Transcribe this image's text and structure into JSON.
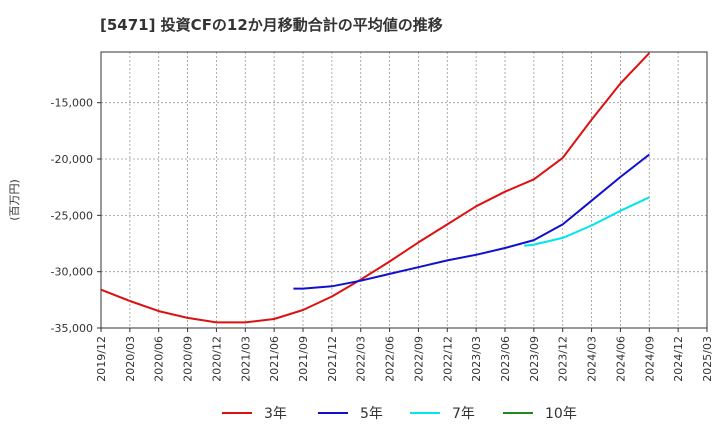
{
  "chart_data": {
    "type": "line",
    "title": "[5471]  投資CFの12か月移動合計の平均値の推移",
    "ylabel": "(百万円)",
    "xlabel": "",
    "ylim": [
      -35000,
      -10500
    ],
    "yticks": [
      -15000,
      -20000,
      -25000,
      -30000,
      -35000
    ],
    "ytick_labels": [
      "-15,000",
      "-20,000",
      "-25,000",
      "-30,000",
      "-35,000"
    ],
    "xticks": [
      "2019/12",
      "2020/03",
      "2020/06",
      "2020/09",
      "2020/12",
      "2021/03",
      "2021/06",
      "2021/09",
      "2021/12",
      "2022/03",
      "2022/06",
      "2022/09",
      "2022/12",
      "2023/03",
      "2023/06",
      "2023/09",
      "2023/12",
      "2024/03",
      "2024/06",
      "2024/09",
      "2024/12",
      "2025/03"
    ],
    "grid": true,
    "legend_position": "bottom",
    "series": [
      {
        "name": "3年",
        "color": "#dd1111",
        "x": [
          "2019/12",
          "2020/03",
          "2020/06",
          "2020/09",
          "2020/12",
          "2021/03",
          "2021/06",
          "2021/09",
          "2021/12",
          "2022/03",
          "2022/06",
          "2022/09",
          "2022/12",
          "2023/03",
          "2023/06",
          "2023/09",
          "2023/12",
          "2024/03",
          "2024/06",
          "2024/09"
        ],
        "values": [
          -31600,
          -32600,
          -33500,
          -34100,
          -34500,
          -34500,
          -34200,
          -33400,
          -32200,
          -30700,
          -29100,
          -27400,
          -25800,
          -24200,
          -22900,
          -21800,
          -19900,
          -16500,
          -13300,
          -10600
        ]
      },
      {
        "name": "5年",
        "color": "#1111cc",
        "x": [
          "2021/08",
          "2021/09",
          "2021/12",
          "2022/03",
          "2022/06",
          "2022/09",
          "2022/12",
          "2023/03",
          "2023/06",
          "2023/09",
          "2023/12",
          "2024/03",
          "2024/06",
          "2024/09"
        ],
        "values": [
          -31500,
          -31500,
          -31300,
          -30800,
          -30200,
          -29600,
          -29000,
          -28500,
          -27900,
          -27200,
          -25800,
          -23700,
          -21600,
          -19600
        ]
      },
      {
        "name": "7年",
        "color": "#00e5ee",
        "x": [
          "2023/08",
          "2023/09",
          "2023/12",
          "2024/03",
          "2024/06",
          "2024/09"
        ],
        "values": [
          -27700,
          -27600,
          -27000,
          -25900,
          -24600,
          -23400
        ]
      },
      {
        "name": "10年",
        "color": "#228822",
        "x": [],
        "values": []
      }
    ]
  }
}
